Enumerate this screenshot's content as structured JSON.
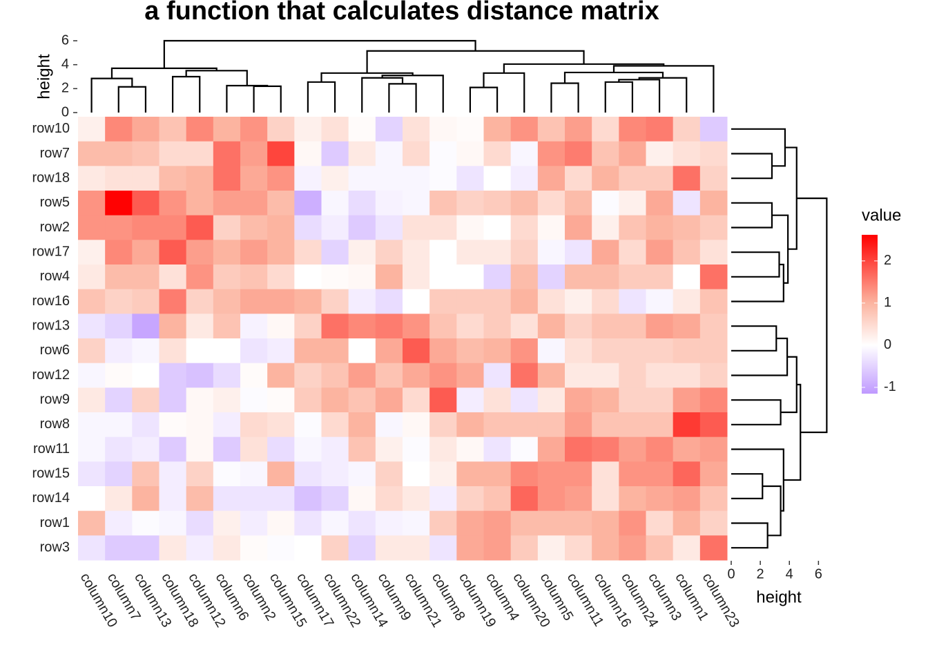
{
  "chart_data": {
    "type": "heatmap",
    "title": "a function that calculates distance matrix",
    "rows": [
      "row10",
      "row7",
      "row18",
      "row5",
      "row2",
      "row17",
      "row4",
      "row16",
      "row13",
      "row6",
      "row12",
      "row9",
      "row8",
      "row11",
      "row15",
      "row14",
      "row1",
      "row3"
    ],
    "columns": [
      "column10",
      "column7",
      "column13",
      "column18",
      "column12",
      "column6",
      "column2",
      "column15",
      "column17",
      "column22",
      "column14",
      "column9",
      "column21",
      "column8",
      "column19",
      "column4",
      "column20",
      "column5",
      "column11",
      "column16",
      "column24",
      "column3",
      "column1",
      "column23"
    ],
    "values": [
      [
        0.2,
        1.4,
        1.1,
        0.8,
        1.4,
        1.0,
        1.3,
        0.6,
        0.2,
        0.4,
        0.05,
        -0.5,
        0.4,
        0.1,
        0.05,
        1.0,
        1.3,
        0.8,
        1.2,
        0.5,
        1.4,
        1.5,
        0.6,
        -0.6
      ],
      [
        0.9,
        0.9,
        0.8,
        0.5,
        0.5,
        1.6,
        1.2,
        2.0,
        0.1,
        -0.6,
        0.3,
        -0.1,
        0.5,
        -0.05,
        0.1,
        0.5,
        -0.1,
        1.3,
        1.5,
        0.8,
        1.1,
        0.2,
        0.4,
        0.5
      ],
      [
        0.3,
        0.4,
        0.4,
        0.9,
        1.0,
        1.6,
        1.1,
        1.3,
        -0.15,
        0.2,
        -0.1,
        -0.1,
        -0.1,
        -0.05,
        -0.3,
        0.0,
        -0.2,
        1.1,
        0.5,
        1.0,
        0.7,
        0.7,
        1.6,
        0.6
      ],
      [
        1.3,
        2.6,
        1.8,
        1.3,
        1.0,
        1.2,
        1.2,
        0.9,
        -0.9,
        -0.1,
        -0.4,
        -0.15,
        -0.1,
        0.8,
        0.6,
        0.7,
        0.9,
        0.5,
        0.9,
        -0.05,
        0.2,
        1.1,
        -0.3,
        1.0
      ],
      [
        1.3,
        1.3,
        1.4,
        1.4,
        1.8,
        0.6,
        0.9,
        1.0,
        -0.4,
        -0.2,
        -0.6,
        -0.3,
        0.4,
        0.4,
        0.1,
        0.0,
        0.5,
        0.1,
        1.1,
        0.2,
        0.8,
        1.0,
        0.9,
        0.7
      ],
      [
        0.2,
        1.4,
        1.1,
        1.8,
        1.2,
        1.0,
        1.2,
        1.0,
        0.5,
        -0.5,
        0.2,
        0.6,
        0.3,
        0.0,
        0.3,
        0.3,
        0.6,
        -0.1,
        -0.3,
        1.1,
        0.5,
        1.2,
        0.8,
        0.4
      ],
      [
        0.3,
        0.9,
        0.9,
        0.4,
        1.3,
        0.7,
        0.8,
        0.5,
        0.0,
        0.05,
        0.1,
        1.0,
        0.3,
        0.0,
        0.0,
        -0.5,
        0.9,
        -0.5,
        0.9,
        0.9,
        0.7,
        0.7,
        0.0,
        1.6
      ],
      [
        0.8,
        0.6,
        0.7,
        1.5,
        0.6,
        0.9,
        1.1,
        1.1,
        1.0,
        0.6,
        -0.2,
        -0.4,
        0.0,
        0.7,
        0.7,
        0.7,
        1.0,
        0.4,
        0.2,
        0.5,
        -0.3,
        -0.1,
        0.3,
        0.8
      ],
      [
        -0.3,
        -0.5,
        -1.0,
        1.0,
        0.3,
        0.8,
        -0.15,
        0.1,
        0.6,
        1.6,
        1.4,
        1.5,
        1.3,
        0.8,
        0.5,
        0.7,
        0.4,
        1.0,
        0.6,
        0.8,
        0.8,
        1.2,
        1.1,
        0.7
      ],
      [
        0.6,
        -0.2,
        -0.1,
        0.4,
        0.0,
        0.0,
        -0.3,
        -0.2,
        1.0,
        1.0,
        0.0,
        1.1,
        1.8,
        1.1,
        0.9,
        1.0,
        1.3,
        -0.1,
        0.4,
        0.6,
        0.6,
        0.6,
        0.7,
        0.7
      ],
      [
        -0.1,
        0.05,
        0.0,
        -0.6,
        -0.7,
        -0.4,
        0.05,
        1.0,
        0.6,
        0.8,
        1.2,
        0.8,
        1.1,
        1.3,
        1.1,
        -0.3,
        1.6,
        1.0,
        0.3,
        0.3,
        0.6,
        0.4,
        0.4,
        0.6
      ],
      [
        0.3,
        -0.5,
        0.6,
        -0.6,
        0.1,
        0.2,
        -0.05,
        0.05,
        0.7,
        1.0,
        0.8,
        1.1,
        0.5,
        1.8,
        -0.2,
        0.4,
        -0.3,
        0.3,
        1.1,
        1.0,
        0.6,
        0.6,
        1.2,
        1.4
      ],
      [
        -0.1,
        -0.1,
        -0.3,
        0.05,
        0.1,
        -0.2,
        0.5,
        0.4,
        -0.05,
        0.5,
        1.0,
        -0.1,
        0.1,
        0.6,
        1.0,
        0.8,
        0.8,
        0.8,
        1.2,
        0.8,
        0.8,
        0.8,
        2.1,
        1.8
      ],
      [
        -0.1,
        -0.3,
        -0.2,
        -0.6,
        0.1,
        -0.6,
        0.4,
        -0.4,
        -0.1,
        -0.2,
        0.8,
        0.2,
        -0.05,
        0.3,
        0.1,
        -0.3,
        -0.05,
        1.1,
        1.6,
        1.5,
        1.2,
        1.4,
        1.1,
        1.2
      ],
      [
        -0.3,
        -0.5,
        0.8,
        -0.2,
        0.6,
        -0.05,
        -0.1,
        1.0,
        -0.3,
        -0.2,
        -0.1,
        0.6,
        0.0,
        0.2,
        1.0,
        1.0,
        1.4,
        1.3,
        1.3,
        0.4,
        1.3,
        1.3,
        1.7,
        1.1
      ],
      [
        0.0,
        0.3,
        1.0,
        -0.2,
        0.9,
        -0.3,
        -0.3,
        -0.3,
        -0.7,
        -0.5,
        0.1,
        0.5,
        0.3,
        -0.2,
        0.6,
        0.8,
        1.7,
        1.3,
        1.2,
        0.4,
        1.0,
        1.1,
        1.2,
        0.8
      ],
      [
        0.9,
        -0.2,
        -0.05,
        -0.1,
        -0.4,
        0.2,
        -0.2,
        0.1,
        -0.3,
        -0.1,
        -0.3,
        -0.15,
        -0.1,
        0.7,
        1.1,
        1.2,
        0.9,
        0.9,
        0.9,
        1.0,
        1.3,
        0.5,
        1.0,
        0.6
      ],
      [
        -0.3,
        -0.6,
        -0.6,
        0.3,
        -0.2,
        0.3,
        0.05,
        -0.05,
        0.0,
        0.6,
        -0.5,
        0.3,
        0.3,
        -0.3,
        1.1,
        1.2,
        0.7,
        0.2,
        0.5,
        1.0,
        1.2,
        0.8,
        0.3,
        1.6
      ]
    ],
    "colorbar": {
      "title": "value",
      "lim": [
        -1.15,
        2.62
      ],
      "ticks": [
        -1,
        0,
        1,
        2
      ],
      "stops": [
        [
          -1.15,
          "#bf99ff"
        ],
        [
          0,
          "#ffffff"
        ],
        [
          1,
          "#fcb4a0"
        ],
        [
          2.62,
          "#ff0000"
        ]
      ]
    },
    "column_dendrogram": {
      "axis_label": "height",
      "ylim": [
        0,
        6
      ],
      "yticks": [
        0,
        2,
        4,
        6
      ],
      "color": "#000000",
      "merges": [
        [
          -2,
          -3,
          2.15
        ],
        [
          -1,
          1,
          2.85
        ],
        [
          -7,
          -8,
          2.2
        ],
        [
          -6,
          3,
          2.25
        ],
        [
          -4,
          -5,
          3.0
        ],
        [
          5,
          4,
          3.5
        ],
        [
          2,
          6,
          3.7
        ],
        [
          -9,
          -10,
          2.55
        ],
        [
          -12,
          -13,
          2.4
        ],
        [
          -11,
          9,
          2.9
        ],
        [
          10,
          -14,
          3.1
        ],
        [
          8,
          11,
          3.3
        ],
        [
          -15,
          -16,
          2.1
        ],
        [
          13,
          -17,
          3.3
        ],
        [
          -18,
          -19,
          2.45
        ],
        [
          -20,
          -21,
          2.55
        ],
        [
          16,
          -22,
          2.75
        ],
        [
          17,
          -23,
          2.9
        ],
        [
          15,
          18,
          3.35
        ],
        [
          19,
          -24,
          3.9
        ],
        [
          14,
          20,
          4.05
        ],
        [
          12,
          21,
          5.15
        ],
        [
          7,
          22,
          6.0
        ]
      ]
    },
    "row_dendrogram": {
      "axis_label": "height",
      "xlim": [
        0,
        6.6
      ],
      "xticks": [
        0,
        2,
        4,
        6
      ],
      "color": "#000000",
      "merges": [
        [
          -2,
          -3,
          2.8
        ],
        [
          -1,
          1,
          3.7
        ],
        [
          -4,
          -5,
          2.8
        ],
        [
          -6,
          -7,
          3.3
        ],
        [
          4,
          -8,
          3.6
        ],
        [
          3,
          5,
          3.9
        ],
        [
          2,
          6,
          4.5
        ],
        [
          -9,
          -10,
          3.1
        ],
        [
          8,
          -11,
          3.85
        ],
        [
          -12,
          -13,
          3.4
        ],
        [
          9,
          10,
          4.5
        ],
        [
          -15,
          -16,
          2.15
        ],
        [
          -17,
          -18,
          2.5
        ],
        [
          12,
          13,
          3.4
        ],
        [
          -14,
          14,
          3.6
        ],
        [
          11,
          15,
          4.76
        ],
        [
          7,
          16,
          6.57
        ]
      ]
    }
  }
}
